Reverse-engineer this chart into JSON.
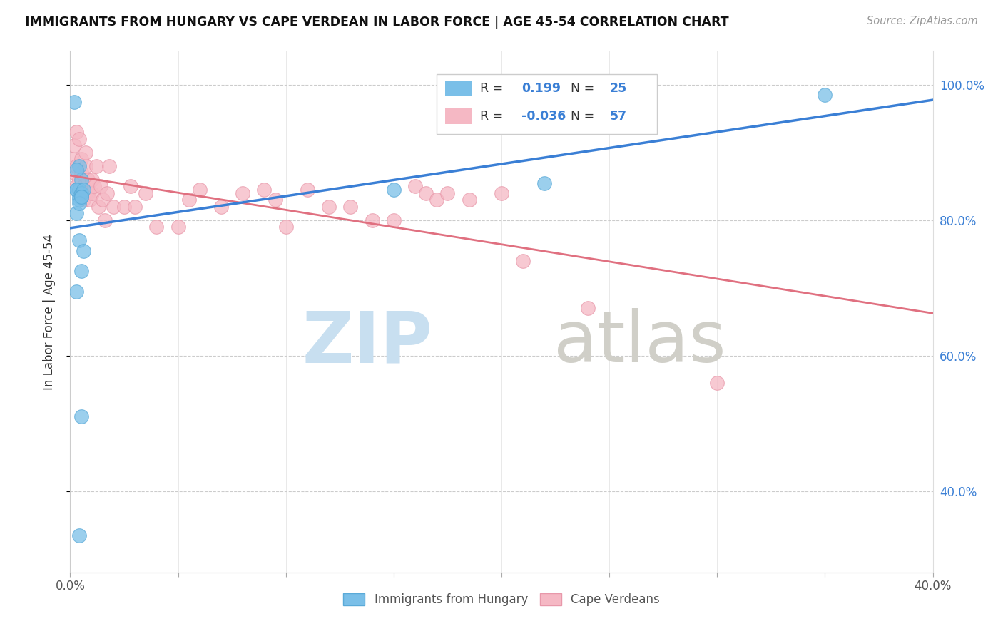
{
  "title": "IMMIGRANTS FROM HUNGARY VS CAPE VERDEAN IN LABOR FORCE | AGE 45-54 CORRELATION CHART",
  "source": "Source: ZipAtlas.com",
  "ylabel": "In Labor Force | Age 45-54",
  "xlim": [
    0.0,
    0.4
  ],
  "ylim": [
    0.28,
    1.05
  ],
  "hungary_color": "#7abfe8",
  "hungary_edge_color": "#5aaad8",
  "capeverde_color": "#f5b8c4",
  "capeverde_edge_color": "#e898aa",
  "line_blue": "#3a7fd5",
  "line_pink": "#e07080",
  "hungary_R": "0.199",
  "hungary_N": "25",
  "capeverde_R": "-0.036",
  "capeverde_N": "57",
  "hungary_x": [
    0.002,
    0.004,
    0.003,
    0.005,
    0.003,
    0.004,
    0.005,
    0.003,
    0.004,
    0.005,
    0.004,
    0.006,
    0.003,
    0.005,
    0.004,
    0.006,
    0.005,
    0.003,
    0.004,
    0.005,
    0.15,
    0.22,
    0.35,
    0.005,
    0.004
  ],
  "hungary_y": [
    0.975,
    0.88,
    0.845,
    0.86,
    0.875,
    0.845,
    0.84,
    0.845,
    0.835,
    0.84,
    0.83,
    0.845,
    0.81,
    0.835,
    0.77,
    0.755,
    0.725,
    0.695,
    0.825,
    0.835,
    0.845,
    0.855,
    0.985,
    0.51,
    0.335
  ],
  "cape_x": [
    0.001,
    0.002,
    0.002,
    0.003,
    0.003,
    0.003,
    0.004,
    0.004,
    0.005,
    0.005,
    0.005,
    0.006,
    0.006,
    0.007,
    0.007,
    0.007,
    0.008,
    0.008,
    0.009,
    0.01,
    0.01,
    0.011,
    0.012,
    0.013,
    0.014,
    0.015,
    0.016,
    0.017,
    0.018,
    0.02,
    0.025,
    0.028,
    0.03,
    0.035,
    0.04,
    0.05,
    0.055,
    0.06,
    0.07,
    0.08,
    0.09,
    0.095,
    0.1,
    0.11,
    0.12,
    0.13,
    0.14,
    0.15,
    0.16,
    0.165,
    0.17,
    0.175,
    0.185,
    0.2,
    0.21,
    0.24,
    0.3
  ],
  "cape_y": [
    0.89,
    0.91,
    0.87,
    0.88,
    0.85,
    0.93,
    0.86,
    0.92,
    0.87,
    0.89,
    0.84,
    0.85,
    0.83,
    0.88,
    0.9,
    0.84,
    0.86,
    0.84,
    0.83,
    0.86,
    0.84,
    0.85,
    0.88,
    0.82,
    0.85,
    0.83,
    0.8,
    0.84,
    0.88,
    0.82,
    0.82,
    0.85,
    0.82,
    0.84,
    0.79,
    0.79,
    0.83,
    0.845,
    0.82,
    0.84,
    0.845,
    0.83,
    0.79,
    0.845,
    0.82,
    0.82,
    0.8,
    0.8,
    0.85,
    0.84,
    0.83,
    0.84,
    0.83,
    0.84,
    0.74,
    0.67,
    0.56
  ],
  "watermark_zip_color": "#c8dff0",
  "watermark_atlas_color": "#d0cfc8"
}
